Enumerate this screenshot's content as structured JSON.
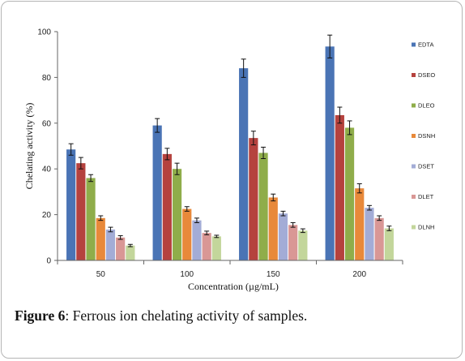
{
  "figure": {
    "caption_label": "Figure 6",
    "caption_text": ": Ferrous ion chelating activity of samples."
  },
  "chart_data": {
    "type": "bar",
    "xlabel": "Concentration  (µg/mL)",
    "ylabel": "Chelating  activity  (%)",
    "ylim": [
      0,
      100
    ],
    "yticks": [
      0,
      20,
      40,
      60,
      80,
      100
    ],
    "grid": false,
    "legend_position": "right",
    "categories": [
      "50",
      "100",
      "150",
      "200"
    ],
    "series": [
      {
        "name": "EDTA",
        "color": "#4a74b5",
        "values": [
          48.5,
          59,
          84,
          93.5
        ],
        "errors": [
          2.5,
          3,
          4,
          5
        ]
      },
      {
        "name": "DSEO",
        "color": "#b5423e",
        "values": [
          42.5,
          46.5,
          53.5,
          63.5
        ],
        "errors": [
          2.5,
          2.5,
          3,
          3.5
        ]
      },
      {
        "name": "DLEO",
        "color": "#8fad4a",
        "values": [
          36,
          40,
          47,
          58
        ],
        "errors": [
          1.5,
          2.5,
          2.5,
          3
        ]
      },
      {
        "name": "DSNH",
        "color": "#e8893a",
        "values": [
          18.5,
          22.5,
          27.5,
          31.5
        ],
        "errors": [
          1,
          1,
          1.5,
          2
        ]
      },
      {
        "name": "DSET",
        "color": "#a3acd6",
        "values": [
          13.5,
          17.5,
          20.5,
          23
        ],
        "errors": [
          1,
          1,
          1,
          1
        ]
      },
      {
        "name": "DLET",
        "color": "#d99795",
        "values": [
          10,
          12,
          15.5,
          18.5
        ],
        "errors": [
          0.8,
          0.8,
          1,
          1
        ]
      },
      {
        "name": "DLNH",
        "color": "#c3d69b",
        "values": [
          6.5,
          10.5,
          13,
          14
        ],
        "errors": [
          0.5,
          0.5,
          0.8,
          1
        ]
      }
    ]
  }
}
